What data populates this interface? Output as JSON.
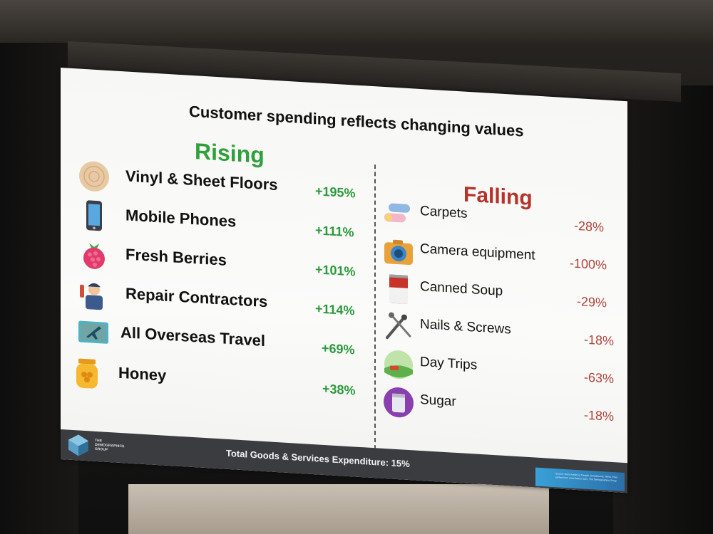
{
  "slide": {
    "title": "Customer spending reflects changing values",
    "rising_header": "Rising",
    "falling_header": "Falling",
    "rising": [
      {
        "label": "Vinyl & Sheet Floors",
        "pct": "+195%",
        "icon": "wood-disc-icon"
      },
      {
        "label": "Mobile Phones",
        "pct": "+111%",
        "icon": "phone-icon"
      },
      {
        "label": "Fresh Berries",
        "pct": "+101%",
        "icon": "raspberry-icon"
      },
      {
        "label": "Repair Contractors",
        "pct": "+114%",
        "icon": "repairman-icon"
      },
      {
        "label": "All Overseas Travel",
        "pct": "+69%",
        "icon": "plane-ticket-icon"
      },
      {
        "label": "Honey",
        "pct": "+38%",
        "icon": "honey-jar-icon"
      }
    ],
    "falling": [
      {
        "label": "Carpets",
        "pct": "-28%",
        "icon": "carpet-rolls-icon"
      },
      {
        "label": "Camera equipment",
        "pct": "-100%",
        "icon": "camera-icon"
      },
      {
        "label": "Canned Soup",
        "pct": "-29%",
        "icon": "soup-can-icon"
      },
      {
        "label": "Nails & Screws",
        "pct": "-18%",
        "icon": "nails-screws-icon"
      },
      {
        "label": "Day Trips",
        "pct": "-63%",
        "icon": "landscape-icon"
      },
      {
        "label": "Sugar",
        "pct": "-18%",
        "icon": "sugar-jar-icon"
      }
    ],
    "footer": {
      "total_text": "Total Goods & Services Expenditure:  15%",
      "logo_text": "THE DEMOGRAPHICS GROUP",
      "sources_text": "Source: Icons made by Freepik, Smashicons, Nikita, Pixel perfect from www.flaticon.com; The Demographics Group"
    },
    "colors": {
      "rising": "#2c9a3c",
      "falling": "#b6322a",
      "footer": "#3a3c40"
    }
  }
}
